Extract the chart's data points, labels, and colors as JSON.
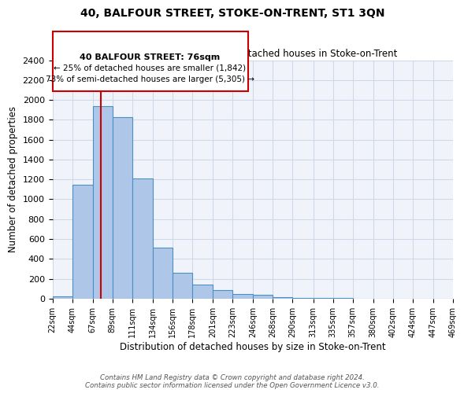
{
  "title": "40, BALFOUR STREET, STOKE-ON-TRENT, ST1 3QN",
  "subtitle": "Size of property relative to detached houses in Stoke-on-Trent",
  "xlabel": "Distribution of detached houses by size in Stoke-on-Trent",
  "ylabel": "Number of detached properties",
  "bin_edges": [
    22,
    44,
    67,
    89,
    111,
    134,
    156,
    178,
    201,
    223,
    246,
    268,
    290,
    313,
    335,
    357,
    380,
    402,
    424,
    447,
    469
  ],
  "bin_labels": [
    "22sqm",
    "44sqm",
    "67sqm",
    "89sqm",
    "111sqm",
    "134sqm",
    "156sqm",
    "178sqm",
    "201sqm",
    "223sqm",
    "246sqm",
    "268sqm",
    "290sqm",
    "313sqm",
    "335sqm",
    "357sqm",
    "380sqm",
    "402sqm",
    "424sqm",
    "447sqm",
    "469sqm"
  ],
  "counts": [
    25,
    1150,
    1940,
    1830,
    1210,
    510,
    260,
    140,
    85,
    50,
    40,
    12,
    8,
    5,
    3,
    2,
    1,
    1,
    0,
    0
  ],
  "bar_facecolor": "#aec6e8",
  "bar_edgecolor": "#4a90c4",
  "property_size": 76,
  "vline_color": "#cc0000",
  "annotation_box_color": "#cc0000",
  "annotation_text_line1": "40 BALFOUR STREET: 76sqm",
  "annotation_text_line2": "← 25% of detached houses are smaller (1,842)",
  "annotation_text_line3": "73% of semi-detached houses are larger (5,305) →",
  "ylim": [
    0,
    2400
  ],
  "yticks": [
    0,
    200,
    400,
    600,
    800,
    1000,
    1200,
    1400,
    1600,
    1800,
    2000,
    2200,
    2400
  ],
  "grid_color": "#d0d8e8",
  "bg_color": "#f0f4fa",
  "footer_line1": "Contains HM Land Registry data © Crown copyright and database right 2024.",
  "footer_line2": "Contains public sector information licensed under the Open Government Licence v3.0."
}
